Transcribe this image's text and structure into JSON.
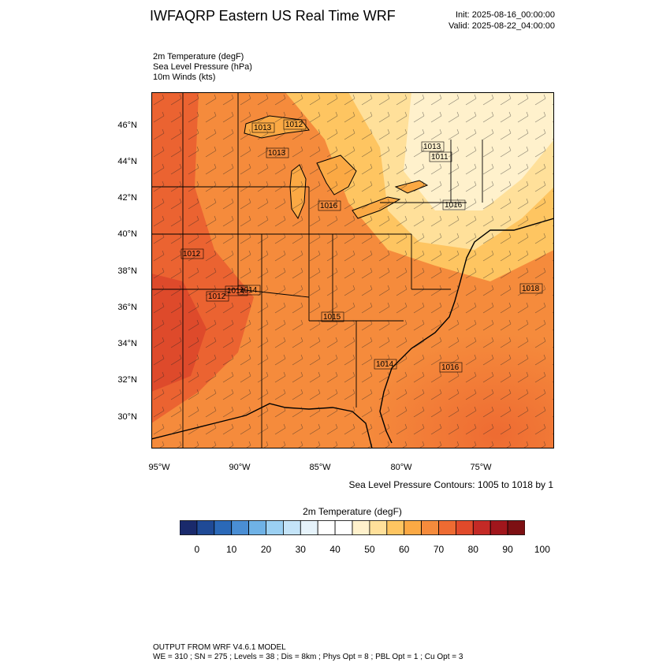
{
  "header": {
    "title": "IWFAQRP Eastern US Real Time WRF",
    "init": "Init: 2025-08-16_00:00:00",
    "valid": "Valid: 2025-08-22_04:00:00"
  },
  "fields": [
    "2m Temperature   (degF)",
    "Sea Level Pressure   (hPa)",
    "10m Winds   (kts)"
  ],
  "map": {
    "lat_labels": [
      "46°N",
      "44°N",
      "42°N",
      "40°N",
      "38°N",
      "36°N",
      "34°N",
      "32°N",
      "30°N"
    ],
    "lon_labels": [
      "95°W",
      "90°W",
      "85°W",
      "80°W",
      "75°W"
    ],
    "pressure_labels": [
      "1013",
      "1012",
      "1013",
      "1016",
      "1011",
      "1016",
      "1012",
      "1014",
      "1012",
      "1014",
      "1015",
      "1013",
      "1018",
      "1016",
      "1014"
    ],
    "contours_note": "Sea Level Pressure Contours: 1005 to 1018 by 1"
  },
  "colorbar": {
    "title": "2m Temperature  (degF)",
    "labels": [
      "0",
      "10",
      "20",
      "30",
      "40",
      "50",
      "60",
      "70",
      "80",
      "90",
      "100"
    ],
    "colors": [
      "#1a2a6c",
      "#1f4a96",
      "#2b69b8",
      "#4a8ed4",
      "#6fb2e6",
      "#9bd0f2",
      "#c4e4f8",
      "#e6f3fb",
      "#ffffff",
      "#ffffff",
      "#fff1cc",
      "#ffe09a",
      "#fec561",
      "#fba944",
      "#f58b3c",
      "#ee6b32",
      "#e14a2b",
      "#c42a26",
      "#a1161c",
      "#7d1013"
    ]
  },
  "footer": {
    "line1": "OUTPUT FROM WRF V4.6.1 MODEL",
    "line2": "WE = 310 ; SN = 275 ; Levels = 38 ; Dis = 8km ; Phys Opt = 8 ; PBL Opt = 1 ; Cu Opt = 3"
  }
}
